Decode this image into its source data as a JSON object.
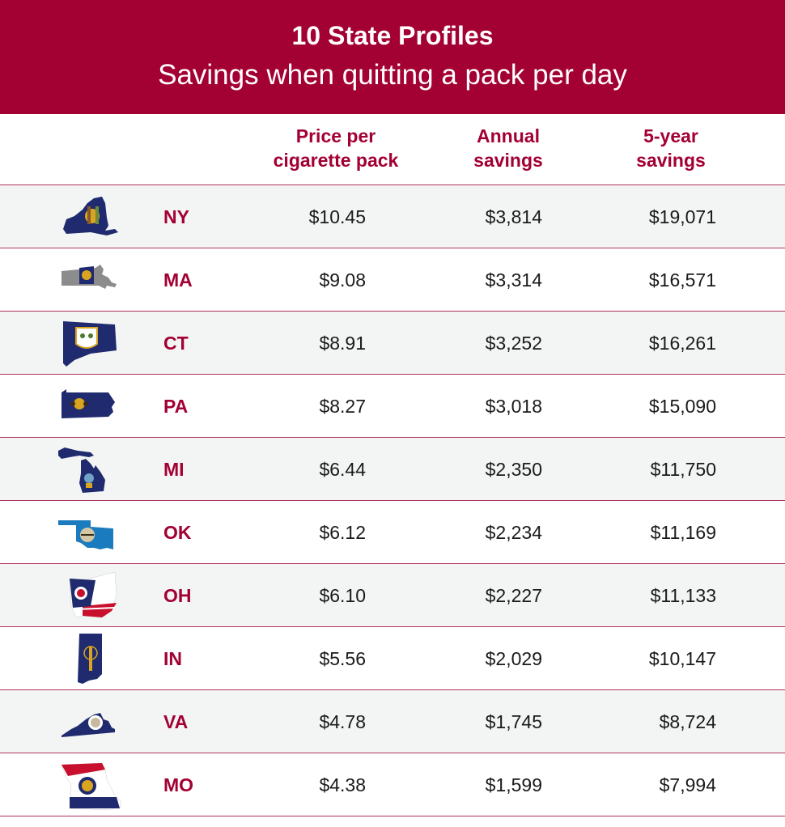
{
  "header": {
    "title": "10 State Profiles",
    "subtitle": "Savings when quitting a pack per day"
  },
  "columns": {
    "price": [
      "Price per",
      "cigarette pack"
    ],
    "annual": [
      "Annual",
      "savings"
    ],
    "five_year": [
      "5-year",
      "savings"
    ]
  },
  "colors": {
    "banner": "#a30033",
    "accent_text": "#a30033",
    "row_shade": "#f3f5f4",
    "row_rule": "#b0335a",
    "flag_blue": "#1f2b6e"
  },
  "rows": [
    {
      "state": "NY",
      "icon": "new-york-flag-map-icon",
      "price": "$10.45",
      "annual": "$3,814",
      "five_year": "$19,071"
    },
    {
      "state": "MA",
      "icon": "massachusetts-flag-map-icon",
      "price": "$9.08",
      "annual": "$3,314",
      "five_year": "$16,571"
    },
    {
      "state": "CT",
      "icon": "connecticut-flag-map-icon",
      "price": "$8.91",
      "annual": "$3,252",
      "five_year": "$16,261"
    },
    {
      "state": "PA",
      "icon": "pennsylvania-flag-map-icon",
      "price": "$8.27",
      "annual": "$3,018",
      "five_year": "$15,090"
    },
    {
      "state": "MI",
      "icon": "michigan-flag-map-icon",
      "price": "$6.44",
      "annual": "$2,350",
      "five_year": "$11,750"
    },
    {
      "state": "OK",
      "icon": "oklahoma-flag-map-icon",
      "price": "$6.12",
      "annual": "$2,234",
      "five_year": "$11,169"
    },
    {
      "state": "OH",
      "icon": "ohio-flag-map-icon",
      "price": "$6.10",
      "annual": "$2,227",
      "five_year": "$11,133"
    },
    {
      "state": "IN",
      "icon": "indiana-flag-map-icon",
      "price": "$5.56",
      "annual": "$2,029",
      "five_year": "$10,147"
    },
    {
      "state": "VA",
      "icon": "virginia-flag-map-icon",
      "price": "$4.78",
      "annual": "$1,745",
      "five_year": "$8,724"
    },
    {
      "state": "MO",
      "icon": "missouri-flag-map-icon",
      "price": "$4.38",
      "annual": "$1,599",
      "five_year": "$7,994"
    }
  ]
}
